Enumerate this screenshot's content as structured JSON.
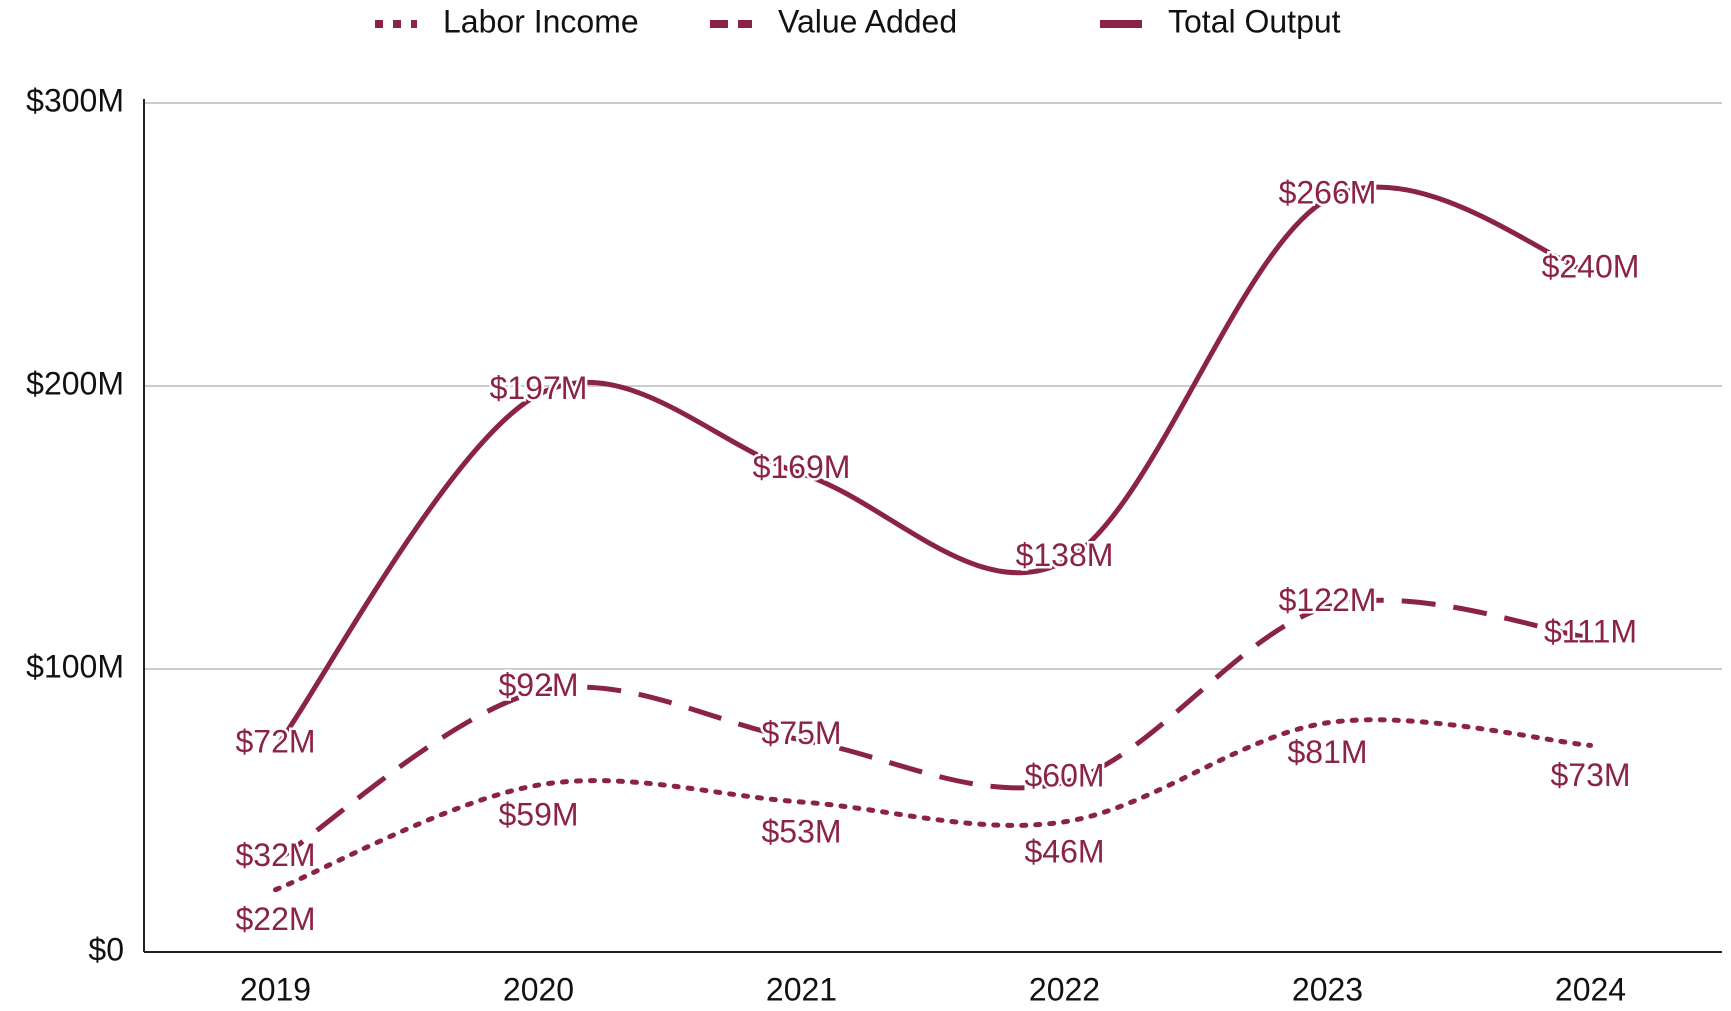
{
  "chart_data": {
    "type": "line",
    "categories": [
      "2019",
      "2020",
      "2021",
      "2022",
      "2023",
      "2024"
    ],
    "series": [
      {
        "name": "Labor Income",
        "color": "#8b2346",
        "dash": "dotted",
        "values": [
          22,
          59,
          53,
          46,
          81,
          73
        ],
        "value_labels": [
          "$22M",
          "$59M",
          "$53M",
          "$46M",
          "$81M",
          "$73M"
        ]
      },
      {
        "name": "Value Added",
        "color": "#8b2346",
        "dash": "dashed",
        "values": [
          32,
          92,
          75,
          60,
          122,
          111
        ],
        "value_labels": [
          "$32M",
          "$92M",
          "$75M",
          "$60M",
          "$122M",
          "$111M"
        ]
      },
      {
        "name": "Total Output",
        "color": "#8b2346",
        "dash": "solid",
        "values": [
          72,
          197,
          169,
          138,
          266,
          240
        ],
        "value_labels": [
          "$72M",
          "$197M",
          "$169M",
          "$138M",
          "$266M",
          "$240M"
        ]
      }
    ],
    "ylim": [
      0,
      300
    ],
    "yticks": [
      {
        "value": 0,
        "label": "$0"
      },
      {
        "value": 100,
        "label": "$100M"
      },
      {
        "value": 200,
        "label": "$200M"
      },
      {
        "value": 300,
        "label": "$300M"
      }
    ],
    "grid": true,
    "smooth": true,
    "legend": "top"
  }
}
